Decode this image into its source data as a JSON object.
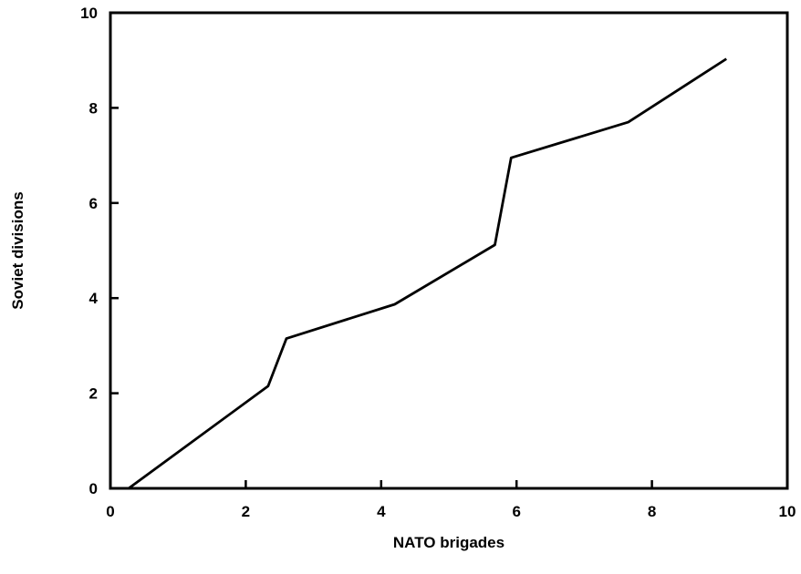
{
  "chart_data": {
    "type": "line",
    "title": "",
    "xlabel": "NATO brigades",
    "ylabel": "Soviet divisions",
    "xlim": [
      0,
      10
    ],
    "ylim": [
      0,
      10
    ],
    "xticks": [
      "0",
      "2",
      "4",
      "6",
      "8",
      "10"
    ],
    "yticks": [
      "0",
      "2",
      "4",
      "6",
      "8",
      "10"
    ],
    "grid": false,
    "series": [
      {
        "x": [
          0.27,
          2.33,
          2.6,
          4.2,
          5.68,
          5.92,
          7.65,
          9.1
        ],
        "y": [
          0.0,
          2.15,
          3.15,
          3.87,
          5.12,
          6.95,
          7.7,
          9.03
        ]
      }
    ]
  }
}
